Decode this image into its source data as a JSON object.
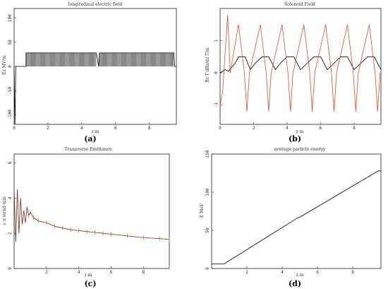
{
  "chart_data": [
    {
      "panel": "(a)",
      "type": "line",
      "title": "longitudinal electric field",
      "xlabel": "z m",
      "ylabel": "Ez MV/m",
      "xlim": [
        0,
        9.6
      ],
      "ylim": [
        -120,
        120
      ],
      "xticks": [
        "0",
        "2",
        "4",
        "6",
        "8"
      ],
      "yticks": [
        "100",
        "50",
        "0",
        "-50",
        "-100"
      ],
      "series": [
        {
          "x": [
            0,
            0.05,
            0.1,
            0.2,
            0.7,
            0.7,
            4.85,
            4.9,
            5.0,
            5.05,
            9.45,
            9.5,
            9.6
          ],
          "y": [
            0,
            -120,
            0,
            0,
            0,
            28,
            28,
            22,
            0,
            28,
            28,
            0,
            0
          ]
        }
      ],
      "color": "#000000"
    },
    {
      "panel": "(b)",
      "type": "line",
      "title": "Solenoid Field",
      "xlabel": "z m",
      "ylabel": "Bz T  dBz/dz T/m",
      "xlim": [
        0,
        9.6
      ],
      "ylim": [
        -1.6,
        2.0
      ],
      "xticks": [
        "0",
        "2",
        "4",
        "6",
        "8"
      ],
      "yticks": [
        "1",
        "0",
        "-1"
      ],
      "series": [
        {
          "name": "Bz",
          "color": "#000000",
          "x": [
            0.0,
            0.3,
            0.5,
            0.9,
            1.1,
            1.5,
            1.8,
            2.1,
            2.5,
            2.9,
            3.3,
            3.6,
            4.0,
            4.4,
            4.8,
            5.2,
            5.6,
            6.0,
            6.4,
            6.8,
            7.2,
            7.6,
            8.0,
            8.4,
            8.8,
            9.2,
            9.6
          ],
          "y": [
            0,
            0.1,
            0.05,
            0.3,
            0.5,
            0.5,
            0.1,
            0.3,
            0.5,
            0.5,
            0.1,
            0.3,
            0.5,
            0.5,
            0.1,
            0.3,
            0.5,
            0.5,
            0.1,
            0.3,
            0.5,
            0.5,
            0.1,
            0.3,
            0.5,
            0.5,
            0.1
          ]
        },
        {
          "name": "dBz/dz",
          "color": "#e24a2a",
          "x": [
            0.0,
            0.15,
            0.3,
            0.45,
            0.6,
            1.1,
            1.45,
            1.6,
            1.75,
            2.4,
            2.75,
            2.9,
            3.05,
            3.7,
            4.05,
            4.2,
            4.35,
            5.0,
            5.35,
            5.5,
            5.65,
            6.3,
            6.65,
            6.8,
            6.95,
            7.6,
            7.95,
            8.1,
            8.25,
            8.9,
            9.25,
            9.4,
            9.55
          ],
          "y": [
            -1.0,
            -0.6,
            0.6,
            1.8,
            0.0,
            1.5,
            0.0,
            -1.2,
            0.0,
            1.5,
            0.0,
            -1.2,
            0.0,
            1.5,
            0.0,
            -1.2,
            0.0,
            1.5,
            0.0,
            -1.2,
            0.0,
            1.5,
            0.0,
            -1.2,
            0.0,
            1.5,
            0.0,
            -1.2,
            0.0,
            1.5,
            0.0,
            -1.2,
            0.0
          ]
        }
      ]
    },
    {
      "panel": "(c)",
      "type": "line",
      "title": "Transverse Emittance",
      "xlabel": "z m",
      "ylabel": "ε π mrad mm",
      "xlim": [
        0,
        9.6
      ],
      "ylim": [
        0,
        6.5
      ],
      "xticks": [
        "2",
        "4",
        "6",
        "8"
      ],
      "yticks": [
        "6",
        "4",
        "2",
        "0"
      ],
      "series": [
        {
          "name": "emittance",
          "color": "#7a2a1a",
          "x": [
            0.0,
            0.1,
            0.2,
            0.3,
            0.4,
            0.5,
            0.6,
            0.7,
            0.8,
            0.9,
            1.0,
            1.2,
            1.5,
            2.0,
            2.5,
            3.0,
            3.5,
            4.0,
            4.5,
            5.0,
            5.5,
            6.0,
            7.0,
            8.0,
            9.0,
            9.6
          ],
          "y": [
            4.5,
            1.5,
            4.5,
            2.0,
            4.0,
            2.5,
            3.3,
            2.6,
            3.5,
            3.0,
            3.2,
            2.9,
            2.7,
            2.6,
            2.4,
            2.3,
            2.2,
            2.15,
            2.1,
            2.05,
            2.0,
            1.95,
            1.85,
            1.75,
            1.7,
            1.65
          ]
        }
      ]
    },
    {
      "panel": "(d)",
      "type": "line",
      "title": "average particle energy",
      "xlabel": "z m",
      "ylabel": "E MeV",
      "xlim": [
        0,
        9.6
      ],
      "ylim": [
        0,
        150
      ],
      "xticks": [
        "2",
        "4",
        "6",
        "8"
      ],
      "yticks": [
        "150",
        "100",
        "50",
        "0"
      ],
      "series": [
        {
          "name": "energy",
          "color": "#000000",
          "x": [
            0.0,
            0.7,
            4.85,
            5.05,
            9.45,
            9.6
          ],
          "y": [
            6,
            6,
            66,
            68,
            128,
            128
          ]
        }
      ]
    }
  ],
  "captions": [
    "(a)",
    "(b)",
    "(c)",
    "(d)"
  ]
}
